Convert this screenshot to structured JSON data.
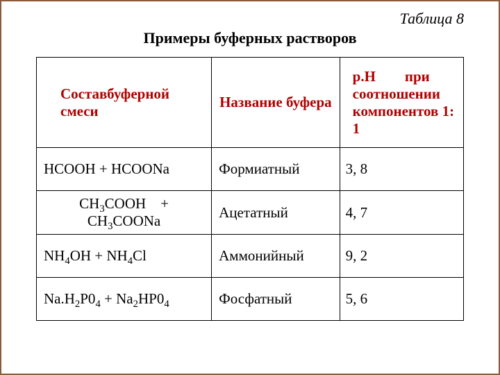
{
  "caption": "Таблица 8",
  "title": "Примеры буферных растворов",
  "table": {
    "border_color": "#000000",
    "header_text_color": "#b00000",
    "body_text_color": "#000000",
    "font_family": "Times New Roman",
    "header_fontsize_pt": 16,
    "body_fontsize_pt": 16,
    "column_widths_percent": [
      41,
      30,
      29
    ],
    "headers": {
      "col1": "Составбуферной смеси",
      "col2": "Название буфера",
      "col3_line1": "р.Н        при",
      "col3_rest": "соотношении компонентов 1: 1"
    },
    "rows": [
      {
        "mix_plain": "НСООН + НСООNa",
        "mix_html": "НСООН + НСООNa",
        "mix_align": "left",
        "name": "Формиатный",
        "ph": "3, 8"
      },
      {
        "mix_plain": "CH3COOH + CH3COONa",
        "mix_html": "СН<sub>3</sub>СООН    + СН<sub>3</sub>СООNa",
        "mix_align": "center",
        "name": "Ацетатный",
        "ph": "4, 7"
      },
      {
        "mix_plain": "NH4OH + NH4Cl",
        "mix_html": "NН<sub>4</sub>ОН + NН<sub>4</sub>Сl",
        "mix_align": "left",
        "name": "Аммонийный",
        "ph": "9, 2"
      },
      {
        "mix_plain": "Na.H2P04 + Na2HP04",
        "mix_html": "Na.Н<sub>2</sub>Р0<sub>4</sub> + Na<sub>2</sub>НР0<sub>4</sub>",
        "mix_align": "left",
        "name": "Фосфатный",
        "ph": "5, 6"
      }
    ]
  },
  "page_border_color": "#8a5a3a"
}
